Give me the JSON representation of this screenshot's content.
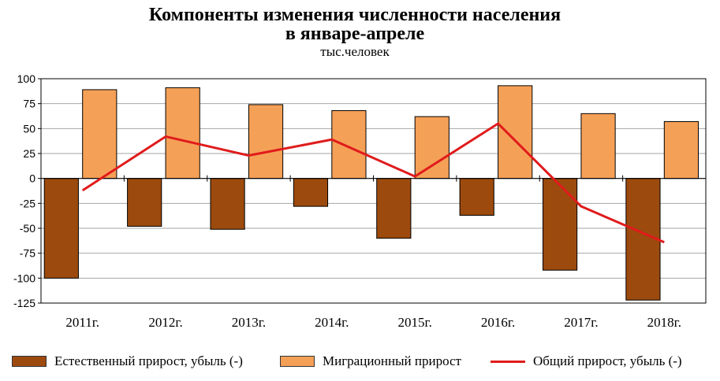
{
  "title_line1": "Компоненты изменения численности населения",
  "title_line2": "в январе-апреле",
  "subtitle": "тыс.человек",
  "colors": {
    "natural": "#9c4a0e",
    "migration": "#f5a057",
    "total": "#e01b1b",
    "grid": "#a6a6a6"
  },
  "chart_data": {
    "type": "bar",
    "categories": [
      "2011г.",
      "2012г.",
      "2013г.",
      "2014г.",
      "2015г.",
      "2016г.",
      "2017г.",
      "2018г."
    ],
    "yticks": [
      "100",
      "75",
      "50",
      "25",
      "0",
      "-25",
      "-50",
      "-75",
      "-100",
      "-125"
    ],
    "ylim": [
      -125,
      100
    ],
    "series": [
      {
        "name": "Естественный прирост, убыль (-)",
        "kind": "bar",
        "values": [
          -100,
          -48,
          -51,
          -28,
          -60,
          -37,
          -92,
          -122
        ]
      },
      {
        "name": "Миграционный прирост",
        "kind": "bar",
        "values": [
          89,
          91,
          74,
          68,
          62,
          93,
          65,
          57
        ]
      },
      {
        "name": "Общий прирост, убыль (-)",
        "kind": "line",
        "values": [
          -12,
          42,
          23,
          39,
          2,
          55,
          -28,
          -64
        ]
      }
    ]
  },
  "legend": {
    "natural": "Естественный прирост, убыль (-)",
    "migration": "Миграционный прирост",
    "total": "Общий прирост, убыль (-)"
  }
}
